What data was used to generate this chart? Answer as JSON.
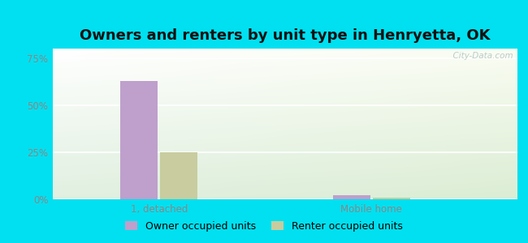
{
  "title": "Owners and renters by unit type in Henryetta, OK",
  "categories": [
    "1, detached",
    "Mobile home"
  ],
  "series": [
    {
      "name": "Owner occupied units",
      "color": "#bf9fcc",
      "values": [
        63.0,
        2.0
      ]
    },
    {
      "name": "Renter occupied units",
      "color": "#c8cc9f",
      "values": [
        25.0,
        1.0
      ]
    }
  ],
  "yticks": [
    0,
    25,
    50,
    75
  ],
  "ytick_labels": [
    "0%",
    "25%",
    "50%",
    "75%"
  ],
  "ylim": [
    0,
    80
  ],
  "bar_width": 0.28,
  "background_outer": "#00e0f0",
  "title_fontsize": 13,
  "tick_fontsize": 8.5,
  "legend_fontsize": 9,
  "watermark": "  City-Data.com"
}
